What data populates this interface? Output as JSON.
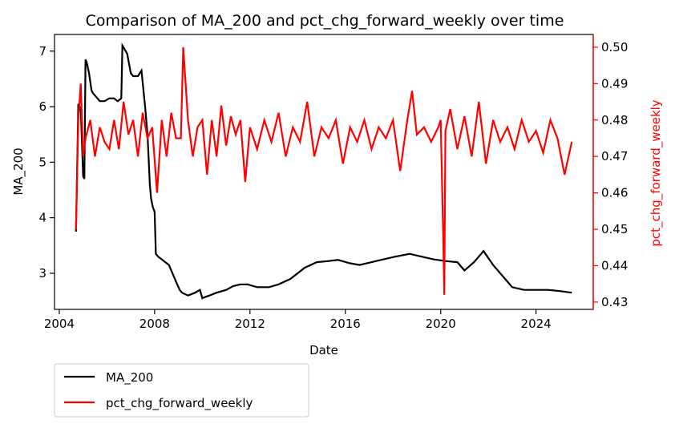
{
  "chart_data": {
    "type": "line",
    "title": "Comparison of MA_200 and pct_chg_forward_weekly over time",
    "xlabel": "Date",
    "ylabel": "MA_200",
    "y2label": "pct_chg_forward_weekly",
    "xlim": [
      2003.8,
      2026.4
    ],
    "ylim": [
      2.35,
      7.3
    ],
    "y2lim": [
      0.428,
      0.5035
    ],
    "x_ticks": [
      "2004",
      "2008",
      "2012",
      "2016",
      "2020",
      "2024"
    ],
    "y_ticks": [
      "3",
      "4",
      "5",
      "6",
      "7"
    ],
    "y2_ticks": [
      "0.43",
      "0.44",
      "0.45",
      "0.46",
      "0.47",
      "0.48",
      "0.49",
      "0.50"
    ],
    "legend_position": "below-left",
    "colors": {
      "ma200": "#000000",
      "pct": "#ff0000"
    },
    "series": [
      {
        "name": "MA_200",
        "axis": "left",
        "color": "#000000",
        "x": [
          2004.7,
          2004.8,
          2004.85,
          2004.9,
          2005.0,
          2005.05,
          2005.1,
          2005.15,
          2005.25,
          2005.35,
          2005.4,
          2005.5,
          2005.7,
          2005.9,
          2006.1,
          2006.3,
          2006.45,
          2006.6,
          2006.65,
          2006.72,
          2006.85,
          2007.0,
          2007.1,
          2007.3,
          2007.45,
          2007.6,
          2007.7,
          2007.8,
          2007.85,
          2007.92,
          2008.0,
          2008.05,
          2008.15,
          2008.3,
          2008.6,
          2008.9,
          2009.05,
          2009.15,
          2009.4,
          2009.7,
          2009.9,
          2010.0,
          2010.1,
          2010.3,
          2010.6,
          2011.0,
          2011.3,
          2011.6,
          2011.9,
          2012.3,
          2012.8,
          2013.2,
          2013.7,
          2014.3,
          2014.8,
          2015.3,
          2015.7,
          2016.2,
          2016.6,
          2017.1,
          2017.6,
          2018.1,
          2018.7,
          2019.2,
          2019.7,
          2020.2,
          2020.7,
          2021.0,
          2021.4,
          2021.8,
          2022.2,
          2022.6,
          2023.0,
          2023.5,
          2024.0,
          2024.5,
          2025.0,
          2025.5
        ],
        "values": [
          3.75,
          6.05,
          5.95,
          6.0,
          4.75,
          4.7,
          6.85,
          6.8,
          6.6,
          6.3,
          6.25,
          6.2,
          6.1,
          6.1,
          6.15,
          6.15,
          6.1,
          6.15,
          7.1,
          7.05,
          6.95,
          6.6,
          6.55,
          6.55,
          6.65,
          6.0,
          5.5,
          4.6,
          4.35,
          4.2,
          4.1,
          3.35,
          3.3,
          3.25,
          3.15,
          2.85,
          2.7,
          2.65,
          2.6,
          2.65,
          2.7,
          2.55,
          2.57,
          2.6,
          2.65,
          2.7,
          2.77,
          2.8,
          2.8,
          2.75,
          2.75,
          2.8,
          2.9,
          3.1,
          3.2,
          3.22,
          3.24,
          3.18,
          3.15,
          3.2,
          3.25,
          3.3,
          3.35,
          3.3,
          3.25,
          3.22,
          3.2,
          3.05,
          3.2,
          3.4,
          3.15,
          2.95,
          2.75,
          2.7,
          2.7,
          2.7,
          2.68,
          2.65
        ]
      },
      {
        "name": "pct_chg_forward_weekly",
        "axis": "right",
        "color": "#ff0000",
        "x": [
          2004.7,
          2004.8,
          2004.9,
          2005.0,
          2005.1,
          2005.3,
          2005.5,
          2005.7,
          2005.9,
          2006.1,
          2006.3,
          2006.5,
          2006.7,
          2006.9,
          2007.1,
          2007.3,
          2007.5,
          2007.7,
          2007.9,
          2008.1,
          2008.3,
          2008.5,
          2008.7,
          2008.9,
          2009.1,
          2009.2,
          2009.4,
          2009.6,
          2009.8,
          2010.0,
          2010.2,
          2010.4,
          2010.6,
          2010.8,
          2011.0,
          2011.2,
          2011.4,
          2011.6,
          2011.8,
          2012.0,
          2012.3,
          2012.6,
          2012.9,
          2013.2,
          2013.5,
          2013.8,
          2014.1,
          2014.4,
          2014.7,
          2015.0,
          2015.3,
          2015.6,
          2015.9,
          2016.2,
          2016.5,
          2016.8,
          2017.1,
          2017.4,
          2017.7,
          2018.0,
          2018.3,
          2018.6,
          2018.8,
          2019.0,
          2019.3,
          2019.6,
          2019.9,
          2020.0,
          2020.1,
          2020.15,
          2020.2,
          2020.4,
          2020.7,
          2021.0,
          2021.3,
          2021.6,
          2021.9,
          2022.2,
          2022.5,
          2022.8,
          2023.1,
          2023.4,
          2023.7,
          2024.0,
          2024.3,
          2024.6,
          2024.9,
          2025.2,
          2025.5
        ],
        "values": [
          0.45,
          0.48,
          0.49,
          0.47,
          0.475,
          0.48,
          0.47,
          0.478,
          0.474,
          0.472,
          0.48,
          0.472,
          0.485,
          0.476,
          0.48,
          0.47,
          0.482,
          0.475,
          0.478,
          0.46,
          0.48,
          0.47,
          0.482,
          0.475,
          0.475,
          0.5,
          0.48,
          0.47,
          0.478,
          0.48,
          0.465,
          0.48,
          0.47,
          0.484,
          0.473,
          0.481,
          0.476,
          0.48,
          0.463,
          0.478,
          0.472,
          0.48,
          0.474,
          0.482,
          0.47,
          0.478,
          0.474,
          0.485,
          0.47,
          0.478,
          0.475,
          0.48,
          0.468,
          0.478,
          0.474,
          0.48,
          0.472,
          0.478,
          0.475,
          0.48,
          0.466,
          0.48,
          0.488,
          0.476,
          0.478,
          0.474,
          0.478,
          0.48,
          0.45,
          0.432,
          0.477,
          0.483,
          0.472,
          0.481,
          0.47,
          0.485,
          0.468,
          0.48,
          0.474,
          0.478,
          0.472,
          0.48,
          0.474,
          0.477,
          0.471,
          0.48,
          0.475,
          0.465,
          0.474
        ]
      }
    ]
  }
}
